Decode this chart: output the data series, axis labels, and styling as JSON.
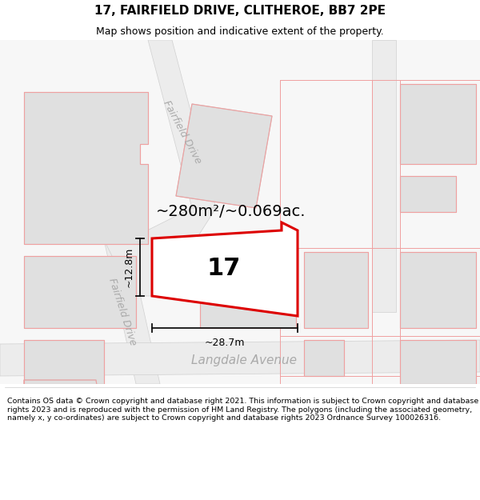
{
  "title": "17, FAIRFIELD DRIVE, CLITHEROE, BB7 2PE",
  "subtitle": "Map shows position and indicative extent of the property.",
  "footer": "Contains OS data © Crown copyright and database right 2021. This information is subject to Crown copyright and database rights 2023 and is reproduced with the permission of HM Land Registry. The polygons (including the associated geometry, namely x, y co-ordinates) are subject to Crown copyright and database rights 2023 Ordnance Survey 100026316.",
  "area_label": "~280m²/~0.069ac.",
  "width_label": "~28.7m",
  "height_label": "~12.8m",
  "road_label_fd_upper": "Fairfield Drive",
  "road_label_fd_lower": "Fairfield Drive",
  "road_label_la": "Langdale Avenue",
  "property_number": "17",
  "bg_color": "#f7f7f7",
  "building_fill": "#e0e0e0",
  "building_stroke": "#c8c8c8",
  "road_fill": "#ebebeb",
  "plot_line_fill": "#f0f0f0",
  "plot_outline": "#cccccc",
  "pink_line": "#f0a0a0",
  "highlight_color": "#dd0000",
  "highlight_fill": "#ffffff",
  "dim_color": "#111111",
  "road_text_color": "#aaaaaa",
  "title_fontsize": 11,
  "subtitle_fontsize": 9,
  "footer_fontsize": 6.8,
  "area_fontsize": 14,
  "dim_fontsize": 9,
  "road_fontsize": 9,
  "la_fontsize": 11,
  "num_fontsize": 22
}
